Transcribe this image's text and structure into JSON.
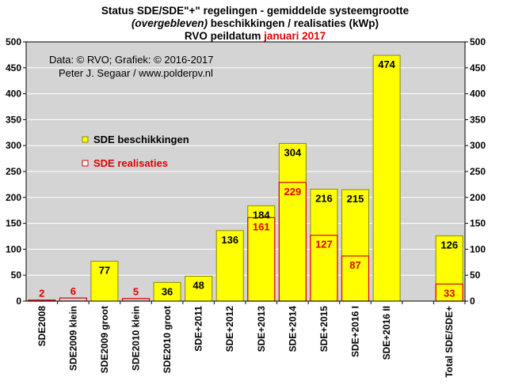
{
  "title": {
    "line1": "Status SDE/SDE\"+\"  regelingen  - gemiddelde systeemgrootte",
    "line2_italic": "(overgebleven)",
    "line2_rest": " beschikkingen  / realisaties (kWp)",
    "line3_prefix": "RVO peildatum ",
    "line3_highlight": "januari 2017"
  },
  "credits": {
    "line1": "Data: © RVO; Grafiek:  © 2016-2017",
    "line2": "Peter J. Segaar / www.polderpv.nl"
  },
  "colors": {
    "plot_bg": "#d4d4d4",
    "bar_fill": "#ffff00",
    "bar_stroke": "#8a8a00",
    "real_stroke": "#e00000",
    "real_text": "#e00000",
    "grid": "#ffffff"
  },
  "chart_data": {
    "type": "bar",
    "title": "Status SDE/SDE\"+\"  regelingen  - gemiddelde systeemgrootte (overgebleven) beschikkingen  / realisaties (kWp) RVO peildatum januari 2017",
    "categories": [
      "SDE2008",
      "SDE2009 klein",
      "SDE2009 groot",
      "SDE2010 klein",
      "SDE2010 groot",
      "SDE+2011",
      "SDE+2012",
      "SDE+2013",
      "SDE+2014",
      "SDE+2015",
      "SDE+2016 I",
      "SDE+2016 II",
      "",
      "Total SDE/SDE+"
    ],
    "series": [
      {
        "name": "SDE beschikkingen",
        "values": [
          null,
          null,
          77,
          null,
          36,
          48,
          136,
          184,
          304,
          216,
          215,
          474,
          null,
          126
        ]
      },
      {
        "name": "SDE realisaties",
        "values": [
          2,
          6,
          null,
          5,
          null,
          null,
          null,
          161,
          229,
          127,
          87,
          null,
          null,
          33
        ]
      }
    ],
    "ylim": [
      0,
      500
    ],
    "yticks": [
      0,
      50,
      100,
      150,
      200,
      250,
      300,
      350,
      400,
      450,
      500
    ],
    "xlabel": "",
    "ylabel": "",
    "grid": true,
    "legend": "upper-left"
  }
}
